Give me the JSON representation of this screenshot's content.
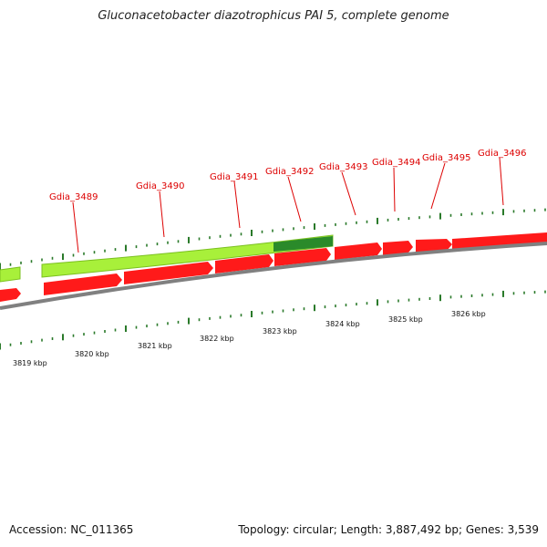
{
  "header": {
    "title": "Gluconacetobacter diazotrophicus PAI 5, complete genome"
  },
  "footer": {
    "accession": "Accession: NC_011365",
    "summary": "Topology: circular; Length: 3,887,492 bp; Genes: 3,539"
  },
  "colors": {
    "reverse_gene": "#ff1a1a",
    "forward_feature": "#a8f03a",
    "forward_feature_dark": "#2a8a2a",
    "backbone": "#808080",
    "tick": "#2a7a2a",
    "label": "#dd0000"
  },
  "genes": [
    {
      "name": "Gdia_3489"
    },
    {
      "name": "Gdia_3490"
    },
    {
      "name": "Gdia_3491"
    },
    {
      "name": "Gdia_3492"
    },
    {
      "name": "Gdia_3493"
    },
    {
      "name": "Gdia_3494"
    },
    {
      "name": "Gdia_3495"
    },
    {
      "name": "Gdia_3496"
    }
  ],
  "scale_labels": [
    "3819 kbp",
    "3820 kbp",
    "3821 kbp",
    "3822 kbp",
    "3823 kbp",
    "3824 kbp",
    "3825 kbp",
    "3826 kbp"
  ]
}
